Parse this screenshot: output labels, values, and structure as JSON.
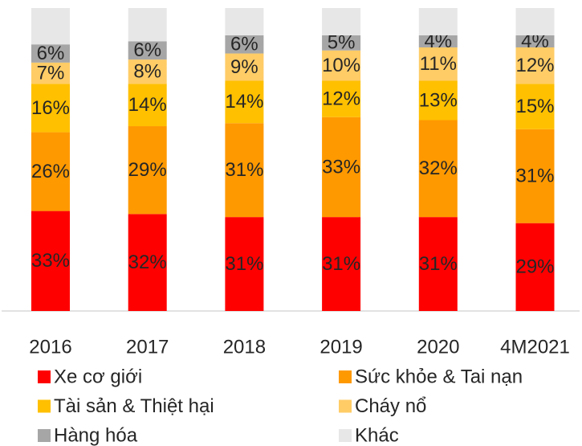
{
  "chart_data": {
    "type": "stacked_bar",
    "categories": [
      "2016",
      "2017",
      "2018",
      "2019",
      "2020",
      "4M2021"
    ],
    "ylim": [
      0,
      100
    ],
    "series": [
      {
        "name": "Xe cơ giới",
        "color": "#ff0000",
        "values": [
          33,
          32,
          31,
          31,
          31,
          29
        ],
        "value_labels": [
          "33%",
          "32%",
          "31%",
          "31%",
          "31%",
          "29%"
        ]
      },
      {
        "name": "Sức khỏe & Tai nạn",
        "color": "#ff9900",
        "values": [
          26,
          29,
          31,
          33,
          32,
          31
        ],
        "value_labels": [
          "26%",
          "29%",
          "31%",
          "33%",
          "32%",
          "31%"
        ]
      },
      {
        "name": "Tài sản & Thiệt hại",
        "color": "#ffc000",
        "values": [
          16,
          14,
          14,
          12,
          13,
          15
        ],
        "value_labels": [
          "16%",
          "14%",
          "14%",
          "12%",
          "13%",
          "15%"
        ]
      },
      {
        "name": "Cháy nổ",
        "color": "#ffcc66",
        "values": [
          7,
          8,
          9,
          10,
          11,
          12
        ],
        "value_labels": [
          "7%",
          "8%",
          "9%",
          "10%",
          "11%",
          "12%"
        ]
      },
      {
        "name": "Hàng hóa",
        "color": "#a6a6a6",
        "values": [
          6,
          6,
          6,
          5,
          4,
          4
        ],
        "value_labels": [
          "6%",
          "6%",
          "6%",
          "5%",
          "4%",
          "4%"
        ]
      },
      {
        "name": "Khác",
        "color": "#e7e7e7",
        "values": [
          12,
          11,
          9,
          9,
          9,
          9
        ]
      }
    ]
  }
}
